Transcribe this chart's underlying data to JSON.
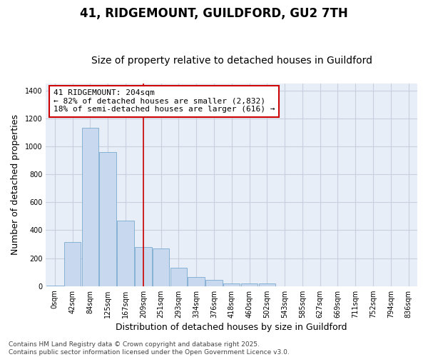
{
  "title": "41, RIDGEMOUNT, GUILDFORD, GU2 7TH",
  "subtitle": "Size of property relative to detached houses in Guildford",
  "xlabel": "Distribution of detached houses by size in Guildford",
  "ylabel": "Number of detached properties",
  "bar_color": "#c8d8ee",
  "bar_edge_color": "#7aaad0",
  "categories": [
    "0sqm",
    "42sqm",
    "84sqm",
    "125sqm",
    "167sqm",
    "209sqm",
    "251sqm",
    "293sqm",
    "334sqm",
    "376sqm",
    "418sqm",
    "460sqm",
    "502sqm",
    "543sqm",
    "585sqm",
    "627sqm",
    "669sqm",
    "711sqm",
    "752sqm",
    "794sqm",
    "836sqm"
  ],
  "values": [
    5,
    315,
    1130,
    960,
    470,
    280,
    270,
    130,
    65,
    45,
    20,
    20,
    20,
    0,
    0,
    0,
    0,
    0,
    0,
    0,
    0
  ],
  "ylim": [
    0,
    1450
  ],
  "yticks": [
    0,
    200,
    400,
    600,
    800,
    1000,
    1200,
    1400
  ],
  "vline_x": 5.0,
  "vline_color": "#cc0000",
  "annotation_text": "41 RIDGEMOUNT: 204sqm\n← 82% of detached houses are smaller (2,832)\n18% of semi-detached houses are larger (616) →",
  "annotation_box_color": "#ffffff",
  "annotation_box_edge_color": "#cc0000",
  "footer_text": "Contains HM Land Registry data © Crown copyright and database right 2025.\nContains public sector information licensed under the Open Government Licence v3.0.",
  "bg_color": "#ffffff",
  "plot_bg_color": "#e8eef8",
  "grid_color": "#c8d0e0",
  "title_fontsize": 12,
  "subtitle_fontsize": 10,
  "axis_label_fontsize": 9,
  "tick_fontsize": 7,
  "footer_fontsize": 6.5,
  "annotation_fontsize": 8
}
